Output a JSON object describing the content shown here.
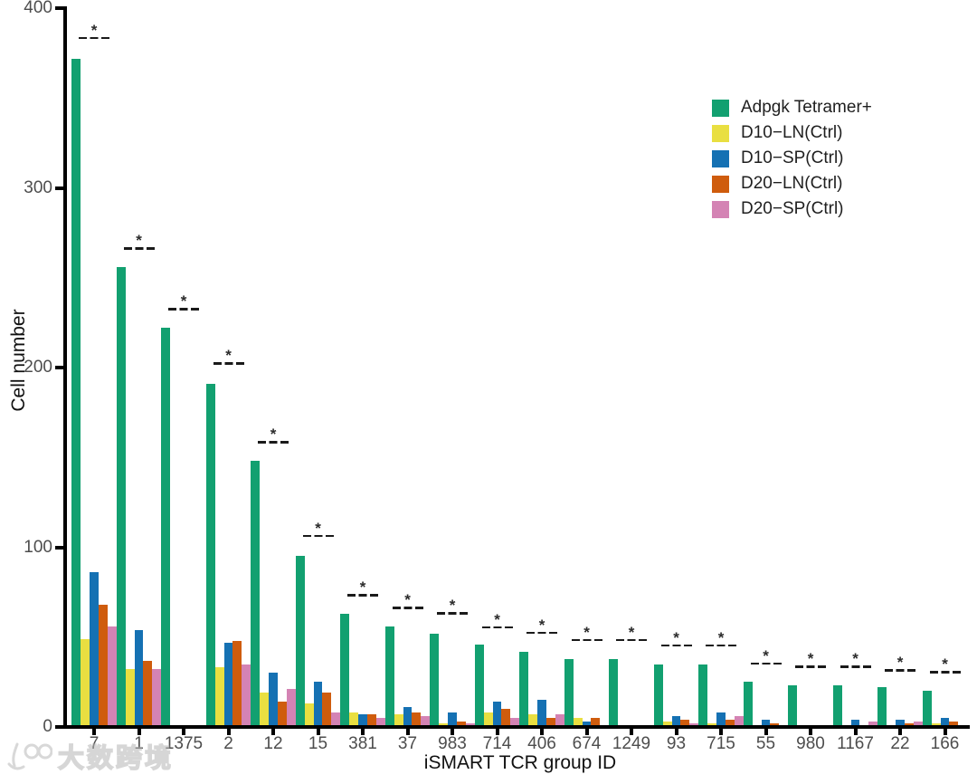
{
  "chart_data": {
    "type": "bar",
    "title": "",
    "xlabel": "iSMART TCR group ID",
    "ylabel": "Cell number",
    "ylim": [
      0,
      400
    ],
    "yticks": [
      0,
      100,
      200,
      300,
      400
    ],
    "grid": false,
    "legend_position": "upper-right-inside",
    "categories": [
      "7",
      "1",
      "1375",
      "2",
      "12",
      "15",
      "381",
      "37",
      "983",
      "714",
      "406",
      "674",
      "1249",
      "93",
      "715",
      "55",
      "980",
      "1167",
      "22",
      "166"
    ],
    "series": [
      {
        "name": "Adpgk Tetramer+",
        "color": "#12A070",
        "values": [
          372,
          256,
          222,
          191,
          148,
          95,
          63,
          56,
          52,
          46,
          42,
          38,
          38,
          35,
          35,
          25,
          23,
          23,
          22,
          20
        ]
      },
      {
        "name": "D10−LN(Ctrl)",
        "color": "#E9DF41",
        "values": [
          49,
          32,
          0,
          33,
          19,
          13,
          8,
          7,
          2,
          8,
          7,
          5,
          0,
          3,
          2,
          1,
          1,
          1,
          1,
          2
        ]
      },
      {
        "name": "D10−SP(Ctrl)",
        "color": "#1571B3",
        "values": [
          86,
          54,
          0,
          47,
          30,
          25,
          7,
          11,
          8,
          14,
          15,
          3,
          0,
          6,
          8,
          4,
          0,
          4,
          4,
          5
        ]
      },
      {
        "name": "D20−LN(Ctrl)",
        "color": "#CF5C0D",
        "values": [
          68,
          37,
          0,
          48,
          14,
          19,
          7,
          8,
          3,
          10,
          5,
          5,
          0,
          4,
          4,
          2,
          0,
          0,
          2,
          3
        ]
      },
      {
        "name": "D20−SP(Ctrl)",
        "color": "#D483B4",
        "values": [
          56,
          32,
          0,
          35,
          21,
          8,
          5,
          6,
          2,
          5,
          7,
          0,
          0,
          2,
          6,
          0,
          1,
          3,
          3,
          1
        ]
      }
    ],
    "significance_markers": {
      "symbol": "*",
      "style": "dashed-line-with-star-per-group",
      "line_heights": [
        383,
        266,
        232,
        202,
        158,
        106,
        73,
        66,
        63,
        55,
        52,
        48,
        48,
        45,
        45,
        35,
        33,
        33,
        31,
        30
      ]
    }
  },
  "watermark": {
    "logo": "100",
    "text": "大数跨境"
  }
}
